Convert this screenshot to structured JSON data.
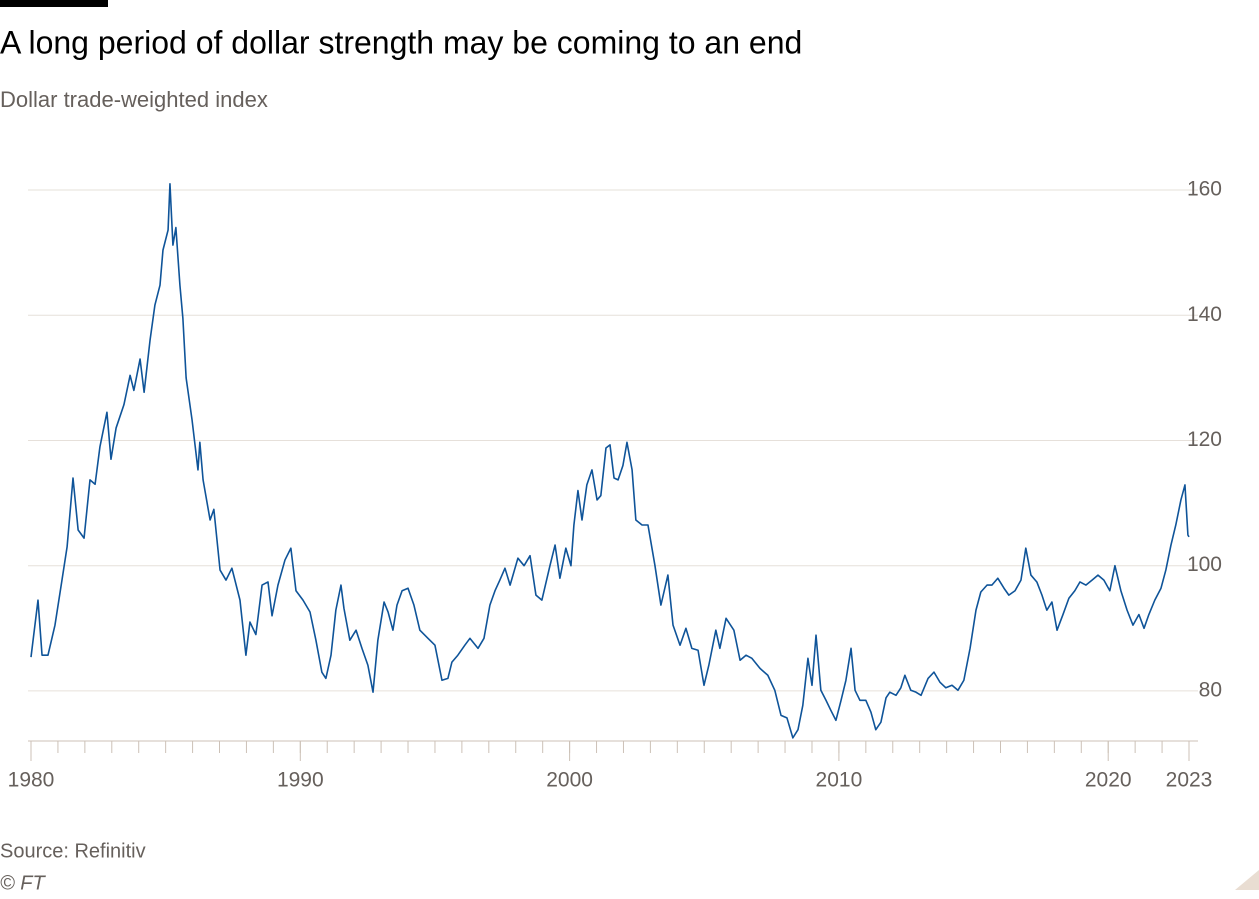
{
  "chart_data": {
    "type": "line",
    "title": "A long period of dollar strength may be coming to an end",
    "subtitle": "Dollar trade-weighted index",
    "source": "Source: Refinitiv",
    "credit": "© FT",
    "xlim": [
      1980,
      2023
    ],
    "xticks": [
      1980,
      1990,
      2000,
      2010,
      2020,
      2023
    ],
    "xticks_minor": [
      1980,
      1981,
      1982,
      1983,
      1984,
      1985,
      1986,
      1987,
      1988,
      1989,
      1990,
      1991,
      1992,
      1993,
      1994,
      1995,
      1996,
      1997,
      1998,
      1999,
      2000,
      2001,
      2002,
      2003,
      2004,
      2005,
      2006,
      2007,
      2008,
      2009,
      2010,
      2011,
      2012,
      2013,
      2014,
      2015,
      2016,
      2017,
      2018,
      2019,
      2020,
      2021,
      2022,
      2023
    ],
    "ylim": [
      72,
      162
    ],
    "yticks": [
      80,
      100,
      120,
      140,
      160
    ],
    "grid": true,
    "x": [
      1980.0,
      1980.26,
      1980.41,
      1980.63,
      1980.89,
      1981.15,
      1981.34,
      1981.56,
      1981.75,
      1981.97,
      1982.19,
      1982.38,
      1982.56,
      1982.82,
      1982.97,
      1983.16,
      1983.45,
      1983.68,
      1983.82,
      1984.05,
      1984.2,
      1984.42,
      1984.6,
      1984.79,
      1984.9,
      1985.09,
      1985.16,
      1985.27,
      1985.38,
      1985.53,
      1985.64,
      1985.76,
      1985.98,
      1986.2,
      1986.27,
      1986.39,
      1986.65,
      1986.79,
      1987.02,
      1987.24,
      1987.46,
      1987.76,
      1987.98,
      1988.13,
      1988.35,
      1988.58,
      1988.8,
      1988.95,
      1989.17,
      1989.43,
      1989.65,
      1989.84,
      1990.1,
      1990.36,
      1990.58,
      1990.8,
      1990.95,
      1991.14,
      1991.32,
      1991.51,
      1991.62,
      1991.84,
      1992.07,
      1992.29,
      1992.51,
      1992.7,
      1992.88,
      1993.11,
      1993.26,
      1993.44,
      1993.59,
      1993.78,
      1994.0,
      1994.22,
      1994.44,
      1994.74,
      1995.0,
      1995.26,
      1995.48,
      1995.63,
      1995.85,
      1996.11,
      1996.3,
      1996.6,
      1996.82,
      1997.04,
      1997.23,
      1997.41,
      1997.6,
      1997.79,
      1998.08,
      1998.31,
      1998.53,
      1998.75,
      1998.97,
      1999.27,
      1999.46,
      1999.64,
      1999.86,
      2000.05,
      2000.16,
      2000.31,
      2000.46,
      2000.64,
      2000.83,
      2001.02,
      2001.16,
      2001.35,
      2001.5,
      2001.65,
      2001.8,
      2001.98,
      2002.13,
      2002.32,
      2002.46,
      2002.69,
      2002.91,
      2003.17,
      2003.39,
      2003.65,
      2003.84,
      2004.1,
      2004.32,
      2004.54,
      2004.77,
      2004.99,
      2005.17,
      2005.43,
      2005.58,
      2005.81,
      2006.1,
      2006.33,
      2006.55,
      2006.77,
      2007.07,
      2007.36,
      2007.62,
      2007.85,
      2008.07,
      2008.29,
      2008.48,
      2008.66,
      2008.85,
      2009.0,
      2009.15,
      2009.33,
      2009.52,
      2009.7,
      2009.89,
      2010.08,
      2010.26,
      2010.45,
      2010.6,
      2010.78,
      2011.0,
      2011.19,
      2011.37,
      2011.56,
      2011.75,
      2011.89,
      2012.12,
      2012.3,
      2012.45,
      2012.67,
      2012.86,
      2013.05,
      2013.31,
      2013.53,
      2013.75,
      2013.97,
      2014.2,
      2014.42,
      2014.64,
      2014.87,
      2015.09,
      2015.27,
      2015.5,
      2015.68,
      2015.9,
      2016.13,
      2016.31,
      2016.54,
      2016.76,
      2016.94,
      2017.13,
      2017.35,
      2017.54,
      2017.72,
      2017.91,
      2018.1,
      2018.32,
      2018.54,
      2018.76,
      2018.95,
      2019.17,
      2019.4,
      2019.62,
      2019.84,
      2020.06,
      2020.25,
      2020.47,
      2020.7,
      2020.92,
      2021.14,
      2021.33,
      2021.51,
      2021.73,
      2021.96,
      2022.14,
      2022.33,
      2022.51,
      2022.7,
      2022.85,
      2022.96,
      2023.0
    ],
    "series": [
      {
        "name": "Dollar trade-weighted index",
        "color": "#0f5499",
        "values": [
          85.4,
          94.5,
          85.7,
          85.7,
          90.5,
          97.7,
          103,
          114,
          105.7,
          104.4,
          113.7,
          113,
          119,
          124.5,
          117,
          122,
          125.7,
          130.4,
          128,
          133,
          127.7,
          136,
          141.6,
          144.8,
          150.4,
          153.6,
          161,
          151.2,
          154,
          144.8,
          139.5,
          130,
          123.3,
          115.3,
          119.7,
          113.7,
          107.3,
          109,
          99.3,
          97.7,
          99.6,
          94.5,
          85.7,
          91,
          89,
          96.9,
          97.4,
          92,
          96.9,
          100.9,
          102.8,
          96,
          94.5,
          92.6,
          88.1,
          83,
          82,
          85.7,
          92.9,
          96.9,
          93.2,
          88.1,
          89.7,
          86.8,
          84.1,
          79.8,
          88.1,
          94.2,
          92.6,
          89.7,
          93.7,
          96,
          96.4,
          93.7,
          89.7,
          88.4,
          87.3,
          81.7,
          82,
          84.6,
          85.7,
          87.3,
          88.4,
          86.8,
          88.4,
          93.7,
          96,
          97.7,
          99.6,
          96.9,
          101.2,
          100,
          101.6,
          95.3,
          94.5,
          100,
          103.3,
          98,
          102.8,
          100,
          106.5,
          112,
          107.3,
          112.9,
          115.3,
          110.5,
          111.2,
          118.8,
          119.3,
          114,
          113.7,
          116,
          119.7,
          115.3,
          107.3,
          106.5,
          106.5,
          100,
          93.7,
          98.5,
          90.5,
          87.3,
          90,
          86.8,
          86.5,
          80.9,
          84.1,
          89.7,
          86.8,
          91.6,
          89.7,
          84.9,
          85.7,
          85.2,
          83.6,
          82.5,
          80.1,
          76.1,
          75.7,
          72.5,
          73.8,
          77.7,
          85.2,
          80.9,
          88.9,
          80.1,
          78.5,
          76.9,
          75.3,
          78.5,
          81.7,
          86.8,
          80.1,
          78.5,
          78.5,
          76.6,
          73.8,
          75,
          78.9,
          79.8,
          79.3,
          80.5,
          82.5,
          80.1,
          79.8,
          79.3,
          82,
          83,
          81.4,
          80.5,
          80.9,
          80.1,
          81.7,
          86.8,
          92.9,
          95.8,
          96.9,
          96.9,
          98,
          96.4,
          95.3,
          96,
          97.7,
          102.8,
          98.5,
          97.4,
          95.3,
          92.9,
          94.2,
          89.7,
          92.2,
          94.8,
          96,
          97.4,
          96.9,
          97.7,
          98.5,
          97.7,
          96,
          100,
          96,
          92.9,
          90.5,
          92.2,
          90,
          92.2,
          94.5,
          96.4,
          99.3,
          103.3,
          106.5,
          110.5,
          112.9,
          104.9,
          104.6
        ]
      }
    ]
  }
}
